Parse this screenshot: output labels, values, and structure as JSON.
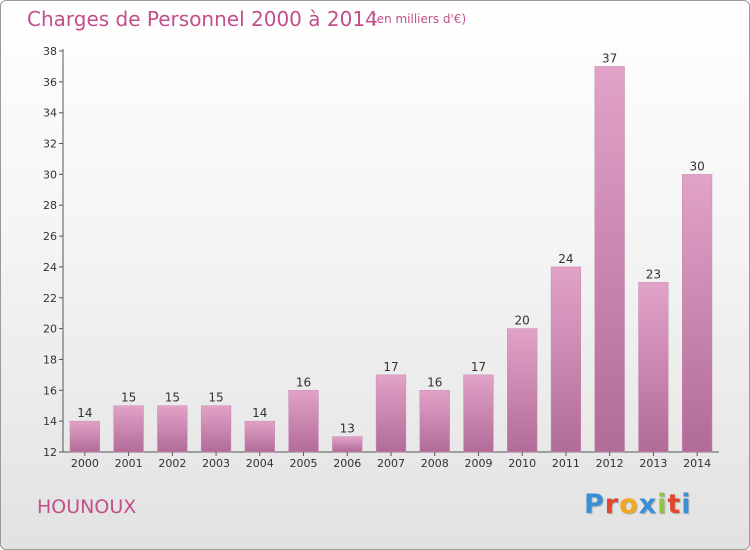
{
  "header": {
    "title": "Charges de Personnel 2000 à 2014",
    "subtitle": "(en milliers d'€)"
  },
  "footer": {
    "commune": "HOUNOUX",
    "logo_letters": [
      "P",
      "r",
      "o",
      "x",
      "i",
      "t",
      "i"
    ]
  },
  "colors": {
    "title": "#c24f8a",
    "bar_top": "#e2a3c8",
    "bar_bottom": "#b16b97",
    "logo": [
      "#3a8fd6",
      "#e0472e",
      "#f2a81d",
      "#3a8fd6",
      "#8cc63f",
      "#e0472e",
      "#3a8fd6"
    ]
  },
  "chart_data": {
    "type": "bar",
    "title": "Charges de Personnel 2000 à 2014",
    "subtitle": "(en milliers d'€)",
    "xlabel": "",
    "ylabel": "",
    "categories": [
      "2000",
      "2001",
      "2002",
      "2003",
      "2004",
      "2005",
      "2006",
      "2007",
      "2008",
      "2009",
      "2010",
      "2011",
      "2012",
      "2013",
      "2014"
    ],
    "values": [
      14,
      15,
      15,
      15,
      14,
      16,
      13,
      17,
      16,
      17,
      20,
      24,
      37,
      23,
      30
    ],
    "ylim": [
      12,
      38
    ],
    "yticks": [
      12,
      14,
      16,
      18,
      20,
      22,
      24,
      26,
      28,
      30,
      32,
      34,
      36,
      38
    ],
    "grid": false,
    "legend": "none"
  }
}
